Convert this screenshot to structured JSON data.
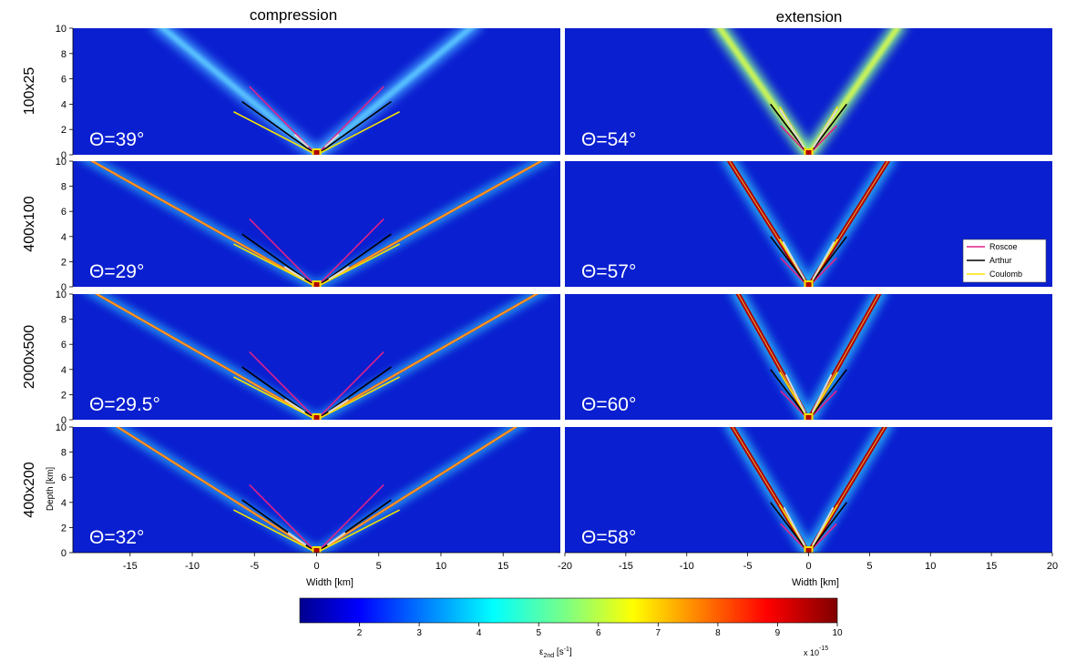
{
  "column_titles": [
    "compression",
    "extension"
  ],
  "row_labels": [
    "100x25",
    "400x100",
    "2000x500",
    "400x200"
  ],
  "chart_data": {
    "type": "heatmap",
    "ylabel": "Depth [km]",
    "xlabel": "Width [km]",
    "ylim": [
      0,
      10
    ],
    "yticks": [
      "0",
      "2",
      "4",
      "6",
      "8",
      "10"
    ],
    "columns": [
      {
        "title": "compression",
        "xlim": [
          -20,
          20
        ],
        "xticks": [
          "-15",
          "-10",
          "-5",
          "0",
          "5",
          "10",
          "15"
        ],
        "xtick_values": [
          -15,
          -10,
          -5,
          0,
          5,
          10,
          15
        ]
      },
      {
        "title": "extension",
        "xlim": [
          -20,
          20
        ],
        "xticks": [
          "-20",
          "-15",
          "-10",
          "-5",
          "0",
          "5",
          "10",
          "15",
          "20"
        ],
        "xtick_values": [
          -20,
          -15,
          -10,
          -5,
          0,
          5,
          10,
          15,
          20
        ]
      }
    ],
    "panels": [
      {
        "row": "100x25",
        "column": "compression",
        "theta": "Θ=39°",
        "band_angle_deg": 39
      },
      {
        "row": "100x25",
        "column": "extension",
        "theta": "Θ=54°",
        "band_angle_deg": 54
      },
      {
        "row": "400x100",
        "column": "compression",
        "theta": "Θ=29°",
        "band_angle_deg": 29
      },
      {
        "row": "400x100",
        "column": "extension",
        "theta": "Θ=57°",
        "band_angle_deg": 57
      },
      {
        "row": "2000x500",
        "column": "compression",
        "theta": "Θ=29.5°",
        "band_angle_deg": 29.5
      },
      {
        "row": "2000x500",
        "column": "extension",
        "theta": "Θ=60°",
        "band_angle_deg": 60
      },
      {
        "row": "400x200",
        "column": "compression",
        "theta": "Θ=32°",
        "band_angle_deg": 32
      },
      {
        "row": "400x200",
        "column": "extension",
        "theta": "Θ=58°",
        "band_angle_deg": 58
      }
    ],
    "legend": {
      "placement": "right, panel 400x100 extension",
      "entries": [
        {
          "name": "Roscoe",
          "color": "#e0208a"
        },
        {
          "name": "Arthur",
          "color": "#000000"
        },
        {
          "name": "Coulomb",
          "color": "#f5e400"
        }
      ]
    },
    "colorbar": {
      "label_main": "ε",
      "label_sub": "2nd",
      "label_unit": " [s",
      "label_exp": "-1",
      "label_end": "]",
      "scale_label": "x 10",
      "scale_exp": "-15",
      "range": [
        1,
        10
      ],
      "ticks": [
        "2",
        "3",
        "4",
        "5",
        "6",
        "7",
        "8",
        "9",
        "10"
      ],
      "tick_values": [
        2,
        3,
        4,
        5,
        6,
        7,
        8,
        9,
        10
      ]
    }
  }
}
